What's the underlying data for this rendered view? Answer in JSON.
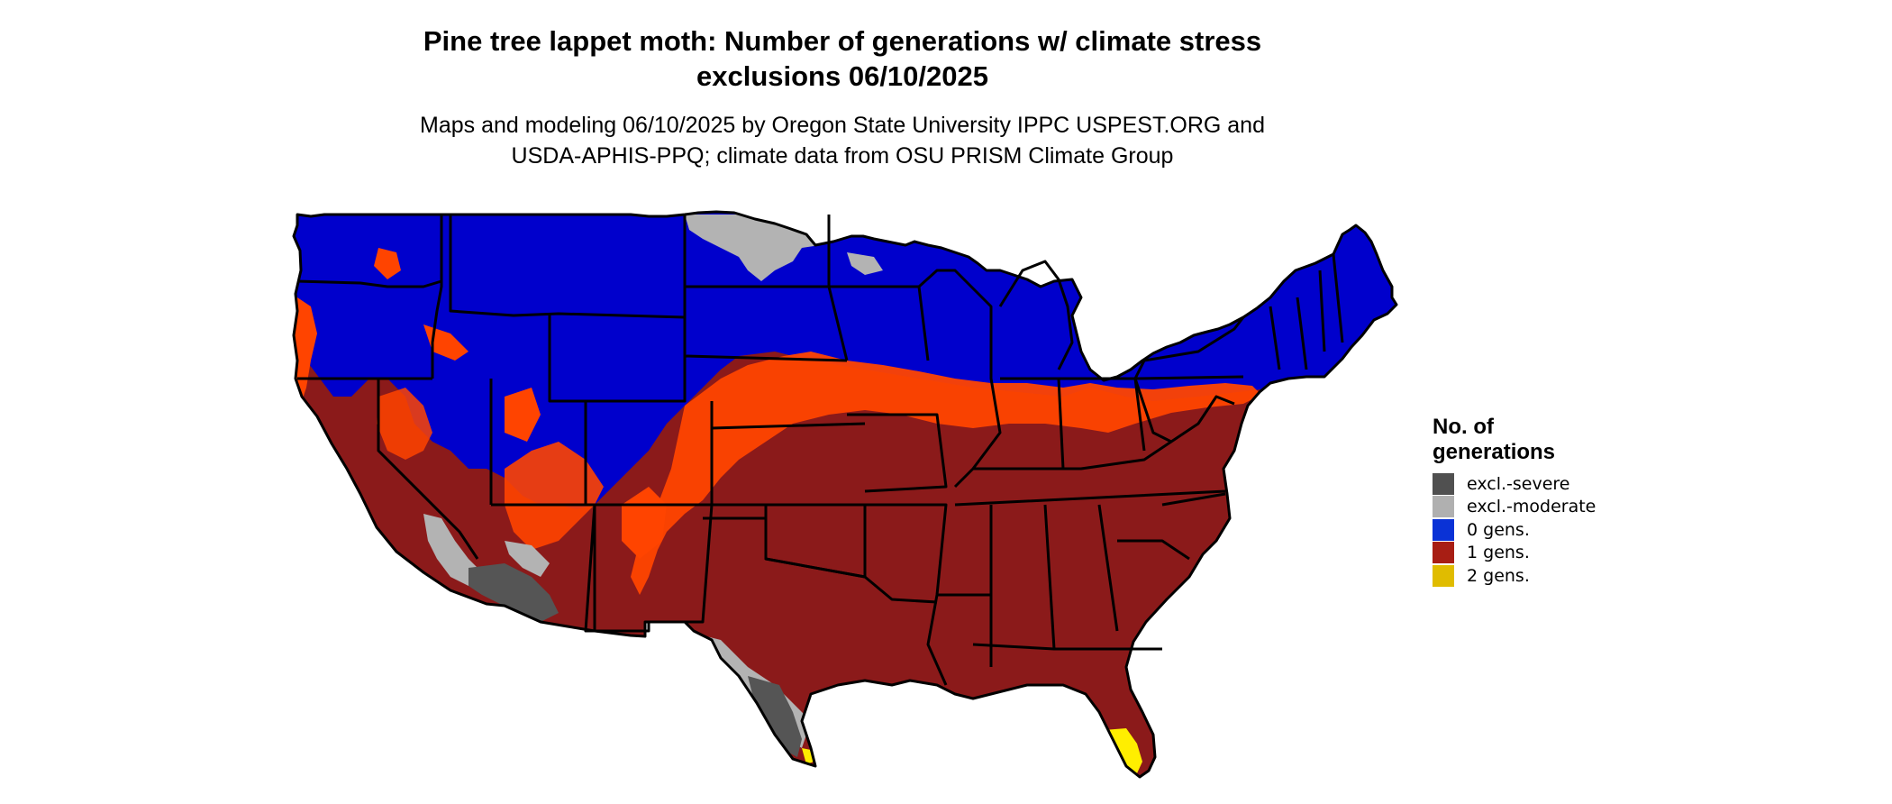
{
  "title_lines": [
    "Pine tree lappet moth: Number of generations w/ climate stress",
    "exclusions 06/10/2025"
  ],
  "subtitle_lines": [
    "Maps and modeling 06/10/2025 by Oregon State University IPPC USPEST.ORG and",
    "USDA-APHIS-PPQ; climate data from OSU PRISM Climate Group"
  ],
  "legend": {
    "title_lines": [
      "No. of",
      "generations"
    ],
    "items": [
      {
        "label": "excl.-severe",
        "color": "#505050"
      },
      {
        "label": "excl.-moderate",
        "color": "#b0b0b0"
      },
      {
        "label": "0 gens.",
        "color": "#0a32d6"
      },
      {
        "label": "1 gens.",
        "color": "#a81e14"
      },
      {
        "label": "2 gens.",
        "color": "#e0bc00"
      }
    ]
  },
  "colors": {
    "zero_gens_fill": "#0000cc",
    "one_gen_fill": "#8b1a1a",
    "marginal_fill": "#ff4400",
    "excl_severe_fill": "#555555",
    "excl_moderate_fill": "#b3b3b3",
    "two_gens_fill": "#ffee00",
    "state_border": "#000000"
  }
}
